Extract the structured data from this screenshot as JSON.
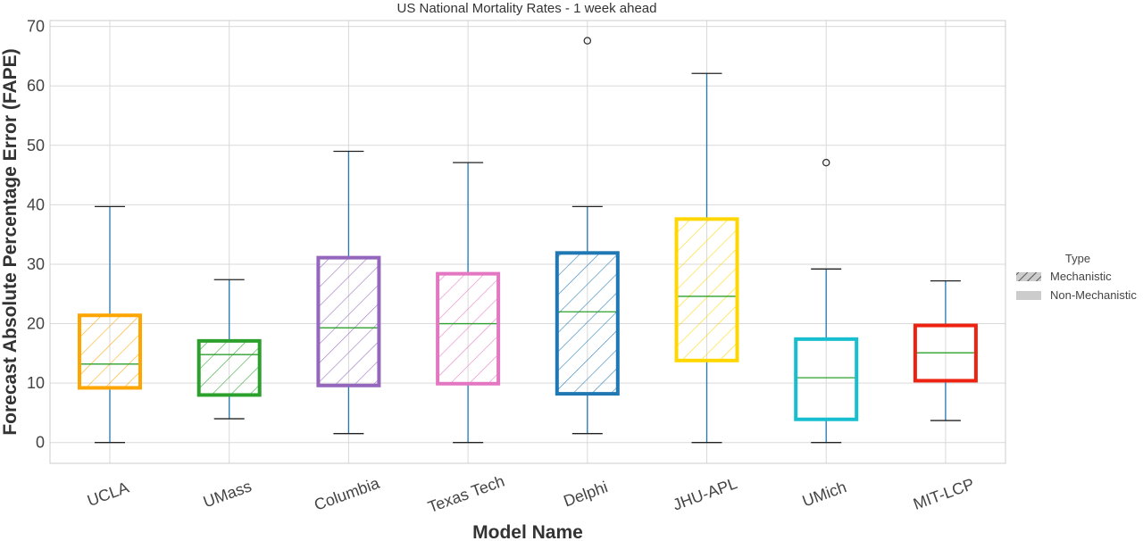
{
  "chart_data": {
    "type": "box",
    "title": "US National Mortality Rates - 1 week ahead",
    "xlabel": "Model Name",
    "ylabel": "Forecast Absolute Percentage Error (FAPE)",
    "ylim": [
      -3.5,
      71
    ],
    "yticks": [
      0,
      10,
      20,
      30,
      40,
      50,
      60,
      70
    ],
    "grid": true,
    "legend": {
      "title": "Type",
      "placement": "right",
      "entries": [
        {
          "label": "Mechanistic",
          "hatched": true
        },
        {
          "label": "Non-Mechanistic",
          "hatched": false
        }
      ]
    },
    "boxes": [
      {
        "name": "UCLA",
        "color": "#ffa500",
        "type": "Mechanistic",
        "whisker_low": 0,
        "q1": 9.2,
        "median": 13.2,
        "q3": 21.4,
        "whisker_high": 39.7,
        "outliers": []
      },
      {
        "name": "UMass",
        "color": "#2ca02c",
        "type": "Mechanistic",
        "whisker_low": 4.0,
        "q1": 8.0,
        "median": 14.8,
        "q3": 17.1,
        "whisker_high": 27.4,
        "outliers": []
      },
      {
        "name": "Columbia",
        "color": "#9467bd",
        "type": "Mechanistic",
        "whisker_low": 1.5,
        "q1": 9.6,
        "median": 19.3,
        "q3": 31.1,
        "whisker_high": 49.0,
        "outliers": []
      },
      {
        "name": "Texas Tech",
        "color": "#e377c2",
        "type": "Mechanistic",
        "whisker_low": 0,
        "q1": 9.9,
        "median": 20.0,
        "q3": 28.4,
        "whisker_high": 47.1,
        "outliers": []
      },
      {
        "name": "Delphi",
        "color": "#1f77b4",
        "type": "Mechanistic",
        "whisker_low": 1.5,
        "q1": 8.2,
        "median": 22.0,
        "q3": 31.9,
        "whisker_high": 39.7,
        "outliers": [
          67.6
        ]
      },
      {
        "name": "JHU-APL",
        "color": "#ffd700",
        "type": "Mechanistic",
        "whisker_low": 0,
        "q1": 13.8,
        "median": 24.6,
        "q3": 37.6,
        "whisker_high": 62.1,
        "outliers": []
      },
      {
        "name": "UMich",
        "color": "#17becf",
        "type": "Non-Mechanistic",
        "whisker_low": 0,
        "q1": 3.9,
        "median": 10.9,
        "q3": 17.4,
        "whisker_high": 29.2,
        "outliers": [
          47.1
        ]
      },
      {
        "name": "MIT-LCP",
        "color": "#ee2211",
        "type": "Non-Mechanistic",
        "whisker_low": 3.7,
        "q1": 10.4,
        "median": 15.1,
        "q3": 19.7,
        "whisker_high": 27.2,
        "outliers": []
      }
    ],
    "style": {
      "whisker_color": "#1f77b4",
      "median_color": "#2ca02c",
      "grid_color": "#d9d9d9",
      "frame_color": "#cccccc"
    }
  }
}
